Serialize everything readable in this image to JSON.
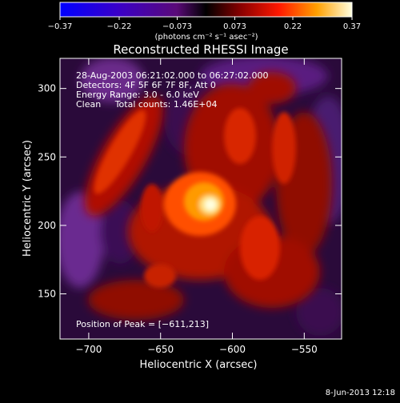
{
  "chart_data": {
    "type": "heatmap",
    "title": "Reconstructed RHESSI Image",
    "xlabel": "Heliocentric X (arcsec)",
    "ylabel": "Heliocentric Y (arcsec)",
    "xlim": [
      -720,
      -524
    ],
    "ylim": [
      117,
      322
    ],
    "x_ticks": [
      {
        "value": -700,
        "label": "−700"
      },
      {
        "value": -650,
        "label": "−650"
      },
      {
        "value": -600,
        "label": "−600"
      },
      {
        "value": -550,
        "label": "−550"
      }
    ],
    "y_ticks": [
      {
        "value": 150,
        "label": "150"
      },
      {
        "value": 200,
        "label": "200"
      },
      {
        "value": 250,
        "label": "250"
      },
      {
        "value": 300,
        "label": "300"
      }
    ],
    "colorbar": {
      "range": [
        -0.37,
        0.37
      ],
      "ticks": [
        {
          "value": -0.37,
          "label": "−0.37"
        },
        {
          "value": -0.22,
          "label": "−0.22"
        },
        {
          "value": -0.073,
          "label": "−0.073"
        },
        {
          "value": 0.073,
          "label": "0.073"
        },
        {
          "value": 0.22,
          "label": "0.22"
        },
        {
          "value": 0.37,
          "label": "0.37"
        }
      ],
      "units": "(photons cm⁻² s⁻¹ asec⁻²)"
    },
    "annotations": {
      "time_range": "28-Aug-2003 06:21:02.000 to 06:27:02.000",
      "detectors": "Detectors: 4F 5F 6F 7F 8F, Att 0",
      "energy": "Energy Range: 3.0 - 6.0 keV",
      "method": "Clean     Total counts: 1.46E+04",
      "peak": "Position of Peak = [−611,213]"
    },
    "peak_position": [
      -611,
      213
    ],
    "footer_date": "8-Jun-2013 12:18"
  }
}
